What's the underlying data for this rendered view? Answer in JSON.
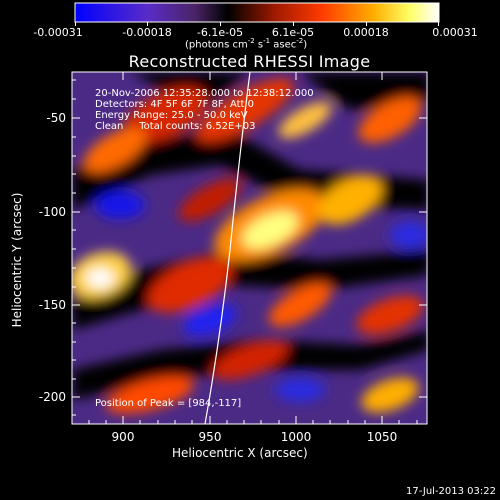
{
  "colorbar": {
    "tick_labels": [
      "-0.00031",
      "-0.00018",
      "-6.1e-05",
      "6.1e-05",
      "0.00018",
      "0.00031"
    ],
    "units_prefix": "(photons cm",
    "units_exp1": "-2",
    "units_mid": " s",
    "units_exp2": "-1",
    "units_mid2": " asec",
    "units_exp3": "-2",
    "units_suffix": ")"
  },
  "title": "Reconstructed RHESSI Image",
  "info": {
    "time": "20-Nov-2006 12:35:28.000 to 12:38:12.000",
    "detectors": "Detectors: 4F 5F 6F 7F 8F, Att 0",
    "energy": "Energy Range: 25.0 - 50.0 keV",
    "clean": "Clean     Total counts: 6.52E+03",
    "peak": "Position of Peak = [984,-117]"
  },
  "axes": {
    "xlabel": "Heliocentric X (arcsec)",
    "ylabel": "Heliocentric Y (arcsec)",
    "xticks": [
      "900",
      "950",
      "1000",
      "1050"
    ],
    "yticks": [
      "-50",
      "-100",
      "-150",
      "-200"
    ]
  },
  "footer_date": "17-Jul-2013 03:22",
  "colors": {
    "colormap": [
      "#0000ff",
      "#6d3fb0",
      "#000000",
      "#8b1500",
      "#ff2200",
      "#ff9a00",
      "#ffff60",
      "#ffffff"
    ]
  }
}
